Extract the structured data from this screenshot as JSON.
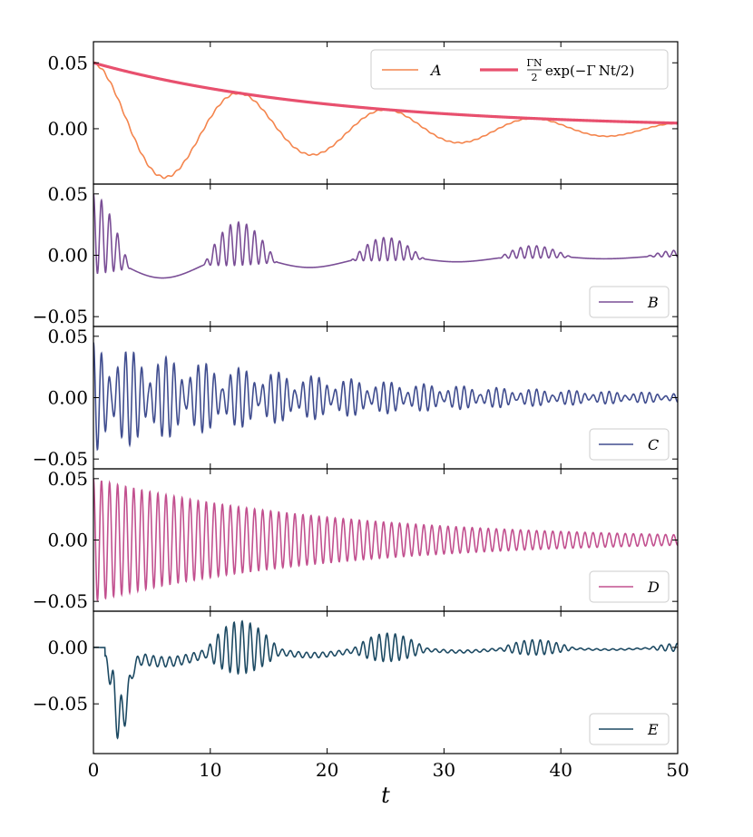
{
  "chart_data": [
    {
      "type": "line",
      "xlim": [
        0,
        50
      ],
      "ylim": [
        -0.042,
        0.066
      ],
      "yticks": [
        0.0,
        0.05
      ],
      "ytick_labels": [
        "0.00",
        "0.05"
      ],
      "legend": "top-right",
      "series": [
        {
          "name": "A",
          "color": "#f4844c",
          "kind": "sum",
          "amp0": 0.05,
          "env_rate": 0.0986,
          "carrier_period": 12.6,
          "fast_freq": 0,
          "noise": 0.0009
        },
        {
          "name": "ΓN2 exp(−ΓNt/2)",
          "legend_label": "exp(−Γ",
          "legend_frac_num": "ΓN",
          "legend_frac_den": "2",
          "legend_tail": "t/2)",
          "color": "#e8506e",
          "kind": "exp",
          "amp0": 0.05,
          "env_rate": 0.0986
        }
      ]
    },
    {
      "type": "line",
      "xlim": [
        0,
        50
      ],
      "ylim": [
        -0.058,
        0.058
      ],
      "yticks": [
        -0.05,
        0.0,
        0.05
      ],
      "ytick_labels": [
        "−0.05",
        "0.00",
        "0.05"
      ],
      "legend": "bottom-right",
      "series": [
        {
          "name": "B",
          "color": "#7a4e96",
          "kind": "beat",
          "amp0": 0.05,
          "env_rate": 0.0986,
          "carrier_period": 12.6,
          "fast_freq": 1.45
        }
      ]
    },
    {
      "type": "line",
      "xlim": [
        0,
        50
      ],
      "ylim": [
        -0.058,
        0.058
      ],
      "yticks": [
        -0.05,
        0.0,
        0.05
      ],
      "ytick_labels": [
        "−0.05",
        "0.00",
        "0.05"
      ],
      "legend": "bottom-right",
      "series": [
        {
          "name": "C",
          "color": "#404d8f",
          "kind": "beat2",
          "amp0": 0.05,
          "env_rate": 0.0986,
          "carrier_period": 6.3,
          "fast_freq": 1.45
        }
      ]
    },
    {
      "type": "line",
      "xlim": [
        0,
        50
      ],
      "ylim": [
        -0.058,
        0.058
      ],
      "yticks": [
        -0.05,
        0.0,
        0.05
      ],
      "ytick_labels": [
        "−0.05",
        "0.00",
        "0.05"
      ],
      "legend": "bottom-right",
      "series": [
        {
          "name": "D",
          "color": "#c2508f",
          "kind": "osc",
          "amp0": 0.05,
          "env_rate": 0.0986,
          "carrier_period": 0,
          "fast_freq": 1.45
        }
      ]
    },
    {
      "type": "line",
      "xlim": [
        0,
        50
      ],
      "ylim": [
        -0.094,
        0.032
      ],
      "yticks": [
        -0.05,
        0.0
      ],
      "ytick_labels": [
        "−0.05",
        "0.00"
      ],
      "xticks": [
        0,
        10,
        20,
        30,
        40,
        50
      ],
      "xtick_labels": [
        "0",
        "10",
        "20",
        "30",
        "40",
        "50"
      ],
      "xlabel": "t",
      "legend": "bottom-right",
      "series": [
        {
          "name": "E",
          "color": "#1d4a63",
          "kind": "delayed",
          "amp0": 0.05,
          "env_rate": 0.0986,
          "carrier_period": 12.6,
          "fast_freq": 1.45
        }
      ]
    }
  ]
}
